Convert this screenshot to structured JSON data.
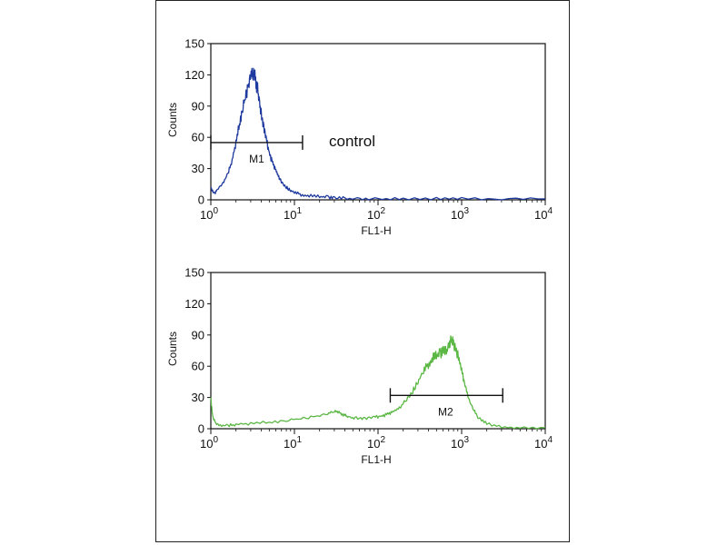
{
  "chart_data": [
    {
      "type": "line",
      "xlabel": "FL1-H",
      "ylabel": "Counts",
      "x_scale": "log",
      "xlim": [
        1,
        10000
      ],
      "ylim": [
        0,
        150
      ],
      "x_ticks": [
        {
          "base": "10",
          "exp": "0"
        },
        {
          "base": "10",
          "exp": "1"
        },
        {
          "base": "10",
          "exp": "2"
        },
        {
          "base": "10",
          "exp": "3"
        },
        {
          "base": "10",
          "exp": "4"
        }
      ],
      "y_ticks": [
        "0",
        "30",
        "60",
        "90",
        "120",
        "150"
      ],
      "series": [
        {
          "color": "#1f3a9e",
          "x": [
            1.0,
            1.1,
            1.2,
            1.4,
            1.6,
            1.8,
            2.0,
            2.2,
            2.4,
            2.6,
            2.8,
            3.0,
            3.2,
            3.4,
            3.6,
            3.8,
            4.0,
            4.3,
            4.6,
            5.0,
            5.5,
            6.0,
            6.5,
            7.0,
            8.0,
            9.0,
            10,
            12,
            15,
            20,
            25,
            30,
            40,
            60,
            100,
            200,
            500,
            1000,
            3000,
            10000
          ],
          "y": [
            12,
            6,
            10,
            16,
            25,
            38,
            55,
            72,
            88,
            100,
            110,
            118,
            122,
            116,
            108,
            95,
            82,
            70,
            58,
            45,
            35,
            28,
            22,
            17,
            12,
            9,
            7,
            5,
            4,
            3,
            2.5,
            2,
            1.5,
            1,
            1,
            0.8,
            0.8,
            0.8,
            0.8,
            1
          ]
        }
      ],
      "gate": {
        "label": "M1",
        "x_start": 1.0,
        "x_end": 12.5,
        "y": 55
      },
      "annotation": "control"
    },
    {
      "type": "line",
      "xlabel": "FL1-H",
      "ylabel": "Counts",
      "x_scale": "log",
      "xlim": [
        1,
        10000
      ],
      "ylim": [
        0,
        150
      ],
      "x_ticks": [
        {
          "base": "10",
          "exp": "0"
        },
        {
          "base": "10",
          "exp": "1"
        },
        {
          "base": "10",
          "exp": "2"
        },
        {
          "base": "10",
          "exp": "3"
        },
        {
          "base": "10",
          "exp": "4"
        }
      ],
      "y_ticks": [
        "0",
        "30",
        "60",
        "90",
        "120",
        "150"
      ],
      "series": [
        {
          "color": "#5cb845",
          "x": [
            1.0,
            1.05,
            1.15,
            1.3,
            1.6,
            2.0,
            3.0,
            5.0,
            8.0,
            12,
            18,
            25,
            30,
            35,
            40,
            45,
            55,
            70,
            90,
            110,
            130,
            150,
            180,
            220,
            260,
            300,
            350,
            400,
            450,
            500,
            550,
            600,
            650,
            700,
            750,
            800,
            900,
            1000,
            1100,
            1200,
            1400,
            1600,
            2000,
            3000,
            5000,
            10000
          ],
          "y": [
            30,
            12,
            5,
            3,
            3,
            4,
            5,
            6,
            8,
            10,
            12,
            14,
            17,
            15,
            13,
            11,
            10,
            10,
            11,
            12,
            14,
            16,
            20,
            28,
            36,
            45,
            55,
            62,
            68,
            70,
            72,
            75,
            74,
            80,
            86,
            82,
            70,
            55,
            42,
            30,
            18,
            10,
            5,
            2,
            1,
            1
          ]
        }
      ],
      "gate": {
        "label": "M2",
        "x_start": 140,
        "x_end": 3100,
        "y": 32
      }
    }
  ]
}
